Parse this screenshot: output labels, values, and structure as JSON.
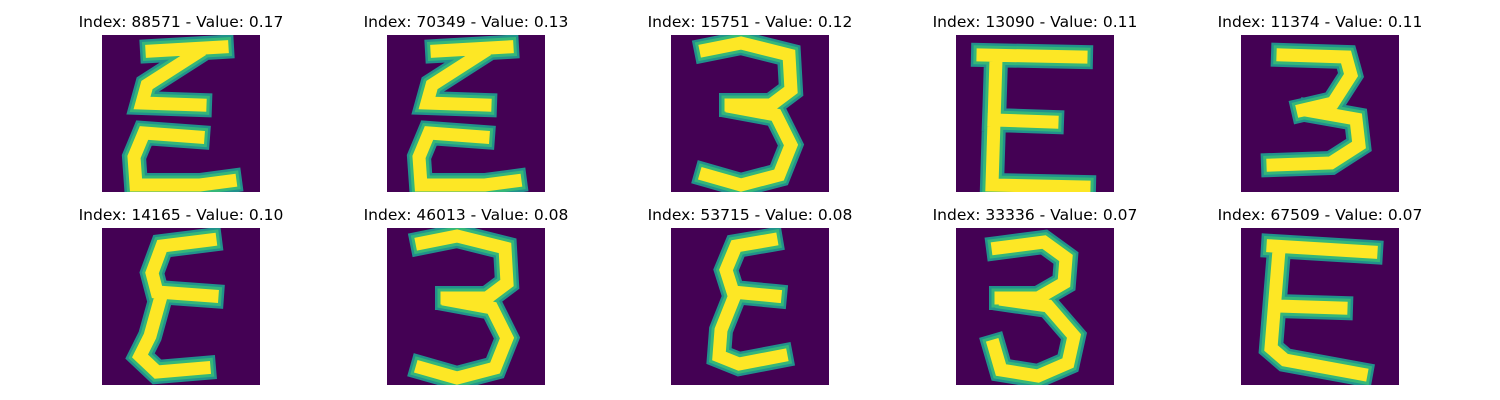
{
  "chart_data": {
    "type": "image-grid",
    "grid": {
      "rows": 2,
      "cols": 5
    },
    "colormap": {
      "background": "#440154",
      "mid": "#21918c",
      "edge": "#35b779",
      "high": "#fde725"
    },
    "panels": [
      {
        "title": "Index: 88571 - Value: 0.17",
        "index": 88571,
        "value": 0.17,
        "glyph": "epsilon-tall"
      },
      {
        "title": "Index: 70349 - Value: 0.13",
        "index": 70349,
        "value": 0.13,
        "glyph": "epsilon-tall"
      },
      {
        "title": "Index: 15751 - Value: 0.12",
        "index": 15751,
        "value": 0.12,
        "glyph": "three"
      },
      {
        "title": "Index: 13090 - Value: 0.11",
        "index": 13090,
        "value": 0.11,
        "glyph": "E"
      },
      {
        "title": "Index: 11374 - Value: 0.11",
        "index": 11374,
        "value": 0.11,
        "glyph": "three-slanted"
      },
      {
        "title": "Index: 14165 - Value: 0.10",
        "index": 14165,
        "value": 0.1,
        "glyph": "epsilon"
      },
      {
        "title": "Index: 46013 - Value: 0.08",
        "index": 46013,
        "value": 0.08,
        "glyph": "three"
      },
      {
        "title": "Index: 53715 - Value: 0.08",
        "index": 53715,
        "value": 0.08,
        "glyph": "epsilon-curly"
      },
      {
        "title": "Index: 33336 - Value: 0.07",
        "index": 33336,
        "value": 0.07,
        "glyph": "three-round"
      },
      {
        "title": "Index: 67509 - Value: 0.07",
        "index": 67509,
        "value": 0.07,
        "glyph": "E-wide"
      }
    ]
  }
}
